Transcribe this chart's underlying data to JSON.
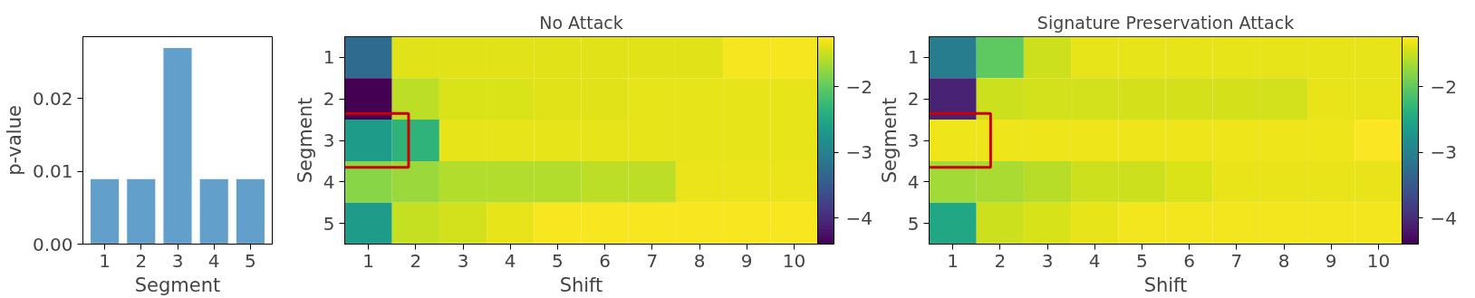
{
  "chart_data": [
    {
      "type": "bar",
      "xlabel": "Segment",
      "ylabel": "p-value",
      "categories": [
        "1",
        "2",
        "3",
        "4",
        "5"
      ],
      "values": [
        0.009,
        0.009,
        0.027,
        0.009,
        0.009
      ],
      "color": "#62a0cb",
      "ylim": [
        0,
        0.0285
      ],
      "yticks": [
        {
          "value": 0,
          "label": "0.00"
        },
        {
          "value": 0.01,
          "label": "0.01"
        },
        {
          "value": 0.02,
          "label": "0.02"
        }
      ],
      "grid": false
    },
    {
      "type": "heatmap",
      "title": "No Attack",
      "xlabel": "Shift",
      "ylabel": "Segment",
      "categories": [
        "1",
        "2",
        "3",
        "4",
        "5",
        "6",
        "7",
        "8",
        "9",
        "10"
      ],
      "y_categories": [
        "1",
        "2",
        "3",
        "4",
        "5"
      ],
      "cells": [
        [
          -3.3,
          -1.38,
          -1.38,
          -1.38,
          -1.38,
          -1.38,
          -1.38,
          -1.38,
          -1.28,
          -1.28
        ],
        [
          -4.4,
          -1.55,
          -1.42,
          -1.42,
          -1.38,
          -1.38,
          -1.36,
          -1.36,
          -1.36,
          -1.36
        ],
        [
          -2.66,
          -2.35,
          -1.36,
          -1.36,
          -1.36,
          -1.36,
          -1.36,
          -1.36,
          -1.36,
          -1.36
        ],
        [
          -1.8,
          -1.72,
          -1.6,
          -1.6,
          -1.6,
          -1.55,
          -1.55,
          -1.33,
          -1.33,
          -1.33
        ],
        [
          -2.66,
          -1.52,
          -1.46,
          -1.36,
          -1.27,
          -1.27,
          -1.27,
          -1.27,
          -1.27,
          -1.27
        ]
      ],
      "clim": [
        -4.4,
        -1.24
      ],
      "cticks": [
        {
          "value": -4,
          "label": "−4"
        },
        {
          "value": -3,
          "label": "−3"
        },
        {
          "value": -2,
          "label": "−2"
        }
      ]
    },
    {
      "type": "heatmap",
      "title": "Signature Preservation Attack",
      "xlabel": "Shift",
      "ylabel": "Segment",
      "categories": [
        "1",
        "2",
        "3",
        "4",
        "5",
        "6",
        "7",
        "8",
        "9",
        "10"
      ],
      "y_categories": [
        "1",
        "2",
        "3",
        "4",
        "5"
      ],
      "cells": [
        [
          -3.07,
          -2.03,
          -1.48,
          -1.36,
          -1.36,
          -1.36,
          -1.36,
          -1.36,
          -1.36,
          -1.36
        ],
        [
          -4.08,
          -1.48,
          -1.46,
          -1.46,
          -1.44,
          -1.44,
          -1.44,
          -1.46,
          -1.34,
          -1.34
        ],
        [
          -1.32,
          -1.32,
          -1.32,
          -1.32,
          -1.32,
          -1.32,
          -1.32,
          -1.32,
          -1.32,
          -1.26
        ],
        [
          -1.68,
          -1.64,
          -1.58,
          -1.48,
          -1.48,
          -1.42,
          -1.34,
          -1.34,
          -1.34,
          -1.34
        ],
        [
          -2.5,
          -1.48,
          -1.43,
          -1.36,
          -1.3,
          -1.3,
          -1.3,
          -1.3,
          -1.3,
          -1.3
        ]
      ],
      "clim": [
        -4.4,
        -1.24
      ],
      "cticks": [
        {
          "value": -4,
          "label": "−4"
        },
        {
          "value": -3,
          "label": "−3"
        },
        {
          "value": -2,
          "label": "−2"
        }
      ]
    }
  ]
}
